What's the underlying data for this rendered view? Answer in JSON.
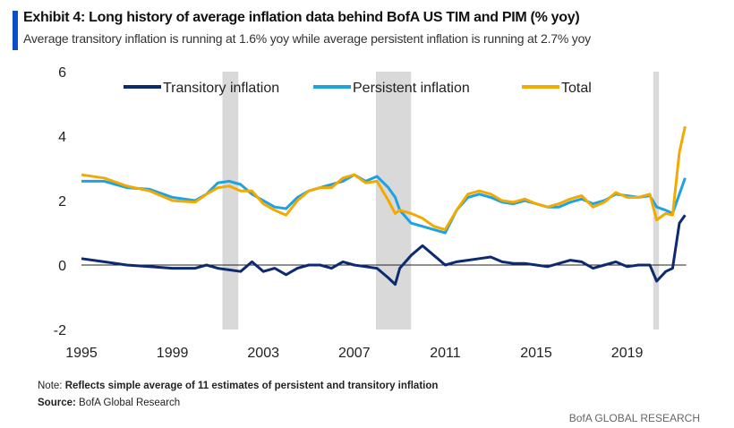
{
  "header": {
    "title": "Exhibit 4: Long history of average inflation data behind BofA US TIM and PIM (% yoy)",
    "subtitle": "Average transitory inflation is running at 1.6% yoy while average persistent inflation is running at 2.7% yoy"
  },
  "footer": {
    "note_label": "Note:",
    "note_text": "Reflects simple average of 11 estimates of persistent and transitory inflation",
    "source_label": "Source:",
    "source_text": "BofA Global Research",
    "brand": "BofA GLOBAL RESEARCH"
  },
  "chart_data": {
    "type": "line",
    "title": "",
    "xlabel": "",
    "ylabel": "",
    "xlim": [
      1995,
      2021.6
    ],
    "ylim": [
      -2,
      6
    ],
    "x_ticks": [
      "1995",
      "1999",
      "2003",
      "2007",
      "2011",
      "2015",
      "2019"
    ],
    "y_ticks": [
      "6",
      "4",
      "2",
      "0",
      "-2"
    ],
    "grid": false,
    "legend": "top",
    "shaded_periods": [
      [
        2001.2,
        2001.9
      ],
      [
        2007.95,
        2009.5
      ],
      [
        2020.15,
        2020.4
      ]
    ],
    "shade_color": "#d9d9d9",
    "x": [
      1995,
      1996,
      1997,
      1998,
      1999,
      2000,
      2000.5,
      2001,
      2001.5,
      2002,
      2002.5,
      2003,
      2003.5,
      2004,
      2004.5,
      2005,
      2005.5,
      2006,
      2006.5,
      2007,
      2007.5,
      2008,
      2008.5,
      2008.8,
      2009,
      2009.5,
      2010,
      2010.5,
      2011,
      2011.5,
      2012,
      2012.5,
      2013,
      2013.5,
      2014,
      2014.5,
      2015,
      2015.5,
      2016,
      2016.5,
      2017,
      2017.5,
      2018,
      2018.5,
      2019,
      2019.5,
      2020,
      2020.3,
      2020.7,
      2021,
      2021.3,
      2021.55
    ],
    "series": [
      {
        "name": "Transitory inflation",
        "color": "#0b2a6f",
        "values": [
          0.2,
          0.1,
          0.0,
          -0.05,
          -0.1,
          -0.1,
          0.0,
          -0.1,
          -0.15,
          -0.2,
          0.1,
          -0.2,
          -0.1,
          -0.3,
          -0.1,
          0.0,
          0.0,
          -0.1,
          0.1,
          0.0,
          -0.05,
          -0.1,
          -0.4,
          -0.6,
          -0.1,
          0.3,
          0.6,
          0.3,
          0.0,
          0.1,
          0.15,
          0.2,
          0.25,
          0.1,
          0.05,
          0.05,
          0.0,
          -0.05,
          0.05,
          0.15,
          0.1,
          -0.1,
          0.0,
          0.1,
          -0.05,
          0.0,
          0.0,
          -0.5,
          -0.2,
          -0.1,
          1.3,
          1.55
        ]
      },
      {
        "name": "Persistent inflation",
        "color": "#1ea3e0",
        "values": [
          2.6,
          2.6,
          2.4,
          2.35,
          2.1,
          2.0,
          2.2,
          2.55,
          2.6,
          2.5,
          2.2,
          2.0,
          1.8,
          1.75,
          2.1,
          2.3,
          2.4,
          2.5,
          2.6,
          2.8,
          2.6,
          2.75,
          2.4,
          2.1,
          1.7,
          1.3,
          1.2,
          1.1,
          1.0,
          1.7,
          2.1,
          2.2,
          2.1,
          1.95,
          1.9,
          2.0,
          1.9,
          1.8,
          1.8,
          1.95,
          2.05,
          1.9,
          2.0,
          2.2,
          2.15,
          2.1,
          2.15,
          1.8,
          1.7,
          1.6,
          2.2,
          2.7
        ]
      },
      {
        "name": "Total",
        "color": "#f2a900",
        "values": [
          2.8,
          2.7,
          2.45,
          2.3,
          2.0,
          1.95,
          2.2,
          2.4,
          2.45,
          2.3,
          2.3,
          1.9,
          1.7,
          1.55,
          2.0,
          2.3,
          2.4,
          2.4,
          2.7,
          2.8,
          2.55,
          2.6,
          2.0,
          1.6,
          1.7,
          1.6,
          1.45,
          1.2,
          1.1,
          1.7,
          2.2,
          2.3,
          2.2,
          2.0,
          1.95,
          2.05,
          1.9,
          1.8,
          1.9,
          2.05,
          2.15,
          1.8,
          1.95,
          2.25,
          2.1,
          2.1,
          2.2,
          1.4,
          1.6,
          1.55,
          3.5,
          4.3
        ]
      }
    ]
  }
}
